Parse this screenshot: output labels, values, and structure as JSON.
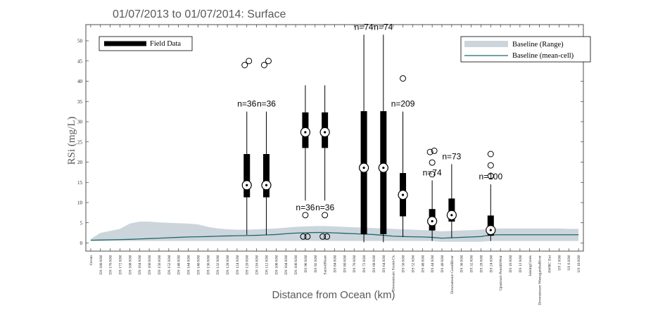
{
  "chart_data": {
    "type": "box",
    "title": "01/07/2013 to 01/07/2014: Surface",
    "xlabel": "Distance from Ocean (km)",
    "ylabel": "RSi (mg/L)",
    "ylim": [
      -2,
      54
    ],
    "yticks": [
      0,
      5,
      10,
      15,
      20,
      25,
      30,
      35,
      40,
      45,
      50
    ],
    "categories": [
      "Ocean",
      "DS 180 KM",
      "DS 176 KM",
      "DS 172 KM",
      "DS 168 KM",
      "DS 164 KM",
      "DS 160 KM",
      "DS 156 KM",
      "DS 152 KM",
      "DS 148 KM",
      "DS 144 KM",
      "DS 140 KM",
      "DS 136 KM",
      "DS 132 KM",
      "DS 128 KM",
      "DS 124 KM",
      "DS 120 KM",
      "DS 116 KM",
      "DS 112 KM",
      "DS 108 KM",
      "DS 104 KM",
      "DS 100 KM",
      "DS 96 KM",
      "DS 92 KM",
      "SacredHeart",
      "DS 84 KM",
      "DS 80 KM",
      "DS 76 KM",
      "DS 72 KM",
      "DS 68 KM",
      "DS 64 KM",
      "Downstream ScenicCk",
      "DS 56 KM",
      "DS 52 KM",
      "DS 48 KM",
      "DS 44 KM",
      "DS 40 KM",
      "Downstream GoodRiver",
      "DS 36 KM",
      "DS 32 KM",
      "DS 28 KM",
      "DS 24 KM",
      "Upstream PenrithWeir",
      "DS 16 KM",
      "DS 12 KM",
      "JoiningCreek",
      "Downstream WarragambaRiver",
      "AWRC Ext",
      "US 2 KM",
      "US 6 KM",
      "US 10 KM"
    ],
    "legend": {
      "position": "top",
      "field_label": "Field Data",
      "range_label": "Baseline (Range)",
      "mean_label": "Baseline (mean-cell)"
    },
    "field_boxes": [
      {
        "pos": 16,
        "n": "n=36",
        "whisker_low": 2,
        "q1": 11.3,
        "median": 14.3,
        "q3": 22,
        "whisker_high": 32.5,
        "outliers": [
          44,
          45
        ]
      },
      {
        "pos": 18,
        "n": "n=36",
        "whisker_low": 2,
        "q1": 11.3,
        "median": 14.3,
        "q3": 22,
        "whisker_high": 32.5,
        "outliers": [
          44,
          45
        ]
      },
      {
        "pos": 22,
        "n": "n=36",
        "whisker_low": 10.5,
        "q1": 23.5,
        "median": 27.4,
        "q3": 32.3,
        "whisker_high": 39,
        "outliers": [
          6.9,
          1.6,
          1.6
        ]
      },
      {
        "pos": 24,
        "n": "n=36",
        "whisker_low": 10.5,
        "q1": 23.5,
        "median": 27.4,
        "q3": 32.3,
        "whisker_high": 39,
        "outliers": [
          6.9,
          1.6,
          1.6
        ]
      },
      {
        "pos": 28,
        "n": "n=74",
        "whisker_low": 0.2,
        "q1": 2.2,
        "median": 18.6,
        "q3": 32.6,
        "whisker_high": 51.5,
        "outliers": []
      },
      {
        "pos": 30,
        "n": "n=74",
        "whisker_low": 0.2,
        "q1": 2.2,
        "median": 18.6,
        "q3": 32.6,
        "whisker_high": 51.5,
        "outliers": []
      },
      {
        "pos": 32,
        "n": "n=209",
        "whisker_low": 1.5,
        "q1": 6.6,
        "median": 11.9,
        "q3": 17.3,
        "whisker_high": 32.5,
        "outliers": [
          40.7
        ]
      },
      {
        "pos": 35,
        "n": "n=74",
        "whisker_low": 0.5,
        "q1": 3.1,
        "median": 5.4,
        "q3": 8.4,
        "whisker_high": 15.5,
        "outliers": [
          17,
          19.9,
          22.5,
          22.8
        ]
      },
      {
        "pos": 37,
        "n": "n=73",
        "whisker_low": 1.2,
        "q1": 5.3,
        "median": 6.9,
        "q3": 11,
        "whisker_high": 19.5,
        "outliers": []
      },
      {
        "pos": 41,
        "n": "n=100",
        "whisker_low": 0.5,
        "q1": 1.8,
        "median": 3.2,
        "q3": 6.8,
        "whisker_high": 14.5,
        "outliers": [
          16.6,
          19.2,
          22
        ]
      }
    ],
    "baseline_mean": [
      0.7,
      0.75,
      0.8,
      0.85,
      0.9,
      1,
      1.1,
      1.2,
      1.3,
      1.4,
      1.5,
      1.55,
      1.6,
      1.7,
      1.75,
      1.8,
      1.85,
      1.9,
      2,
      2.1,
      2.3,
      2.45,
      2.55,
      2.6,
      2.6,
      2.5,
      2.4,
      2.3,
      2.2,
      2.1,
      1.9,
      1.7,
      1.6,
      1.55,
      1.5,
      1.4,
      1.2,
      1.3,
      1.4,
      1.5,
      1.6,
      2,
      2.05,
      2.05,
      2.05,
      2.05,
      2.05,
      2.05,
      2.05,
      2.05,
      2.05
    ],
    "baseline_max": [
      1,
      2.5,
      3,
      3.5,
      4.8,
      5.3,
      5.3,
      5.1,
      5.0,
      4.9,
      4.8,
      4.6,
      4.0,
      3.6,
      3.4,
      3.3,
      3.3,
      3.4,
      3.5,
      3.6,
      3.8,
      4.0,
      4.1,
      4.2,
      4.2,
      4.1,
      4.0,
      3.9,
      3.8,
      3.7,
      3.6,
      3.5,
      3.4,
      3.3,
      3.2,
      3.1,
      2.9,
      3.0,
      3.1,
      3.2,
      3.3,
      3.5,
      3.6,
      3.6,
      3.6,
      3.6,
      3.6,
      3.6,
      3.6,
      3.5,
      3.5
    ],
    "baseline_min": [
      0.5,
      0.5,
      0.5,
      0.5,
      0.5,
      0.5,
      0.5,
      0.5,
      0.5,
      0.5,
      0.5,
      0.5,
      0.5,
      0.5,
      0.5,
      0.5,
      0.5,
      0.5,
      0.5,
      0.5,
      0.5,
      0.5,
      0.5,
      0.5,
      0.5,
      0.5,
      0.5,
      0.5,
      0.5,
      0.5,
      0.5,
      0.5,
      0.5,
      0.5,
      0.5,
      0.5,
      0.3,
      0.3,
      0.3,
      0.3,
      0.3,
      0.5,
      0.5,
      0.5,
      0.5,
      0.5,
      0.5,
      0.5,
      0.5,
      0.5,
      0.5
    ],
    "colors": {
      "range": "#cdd5dc",
      "mean": "#1d6a6a",
      "box": "#000000",
      "axis": "#222222"
    }
  }
}
